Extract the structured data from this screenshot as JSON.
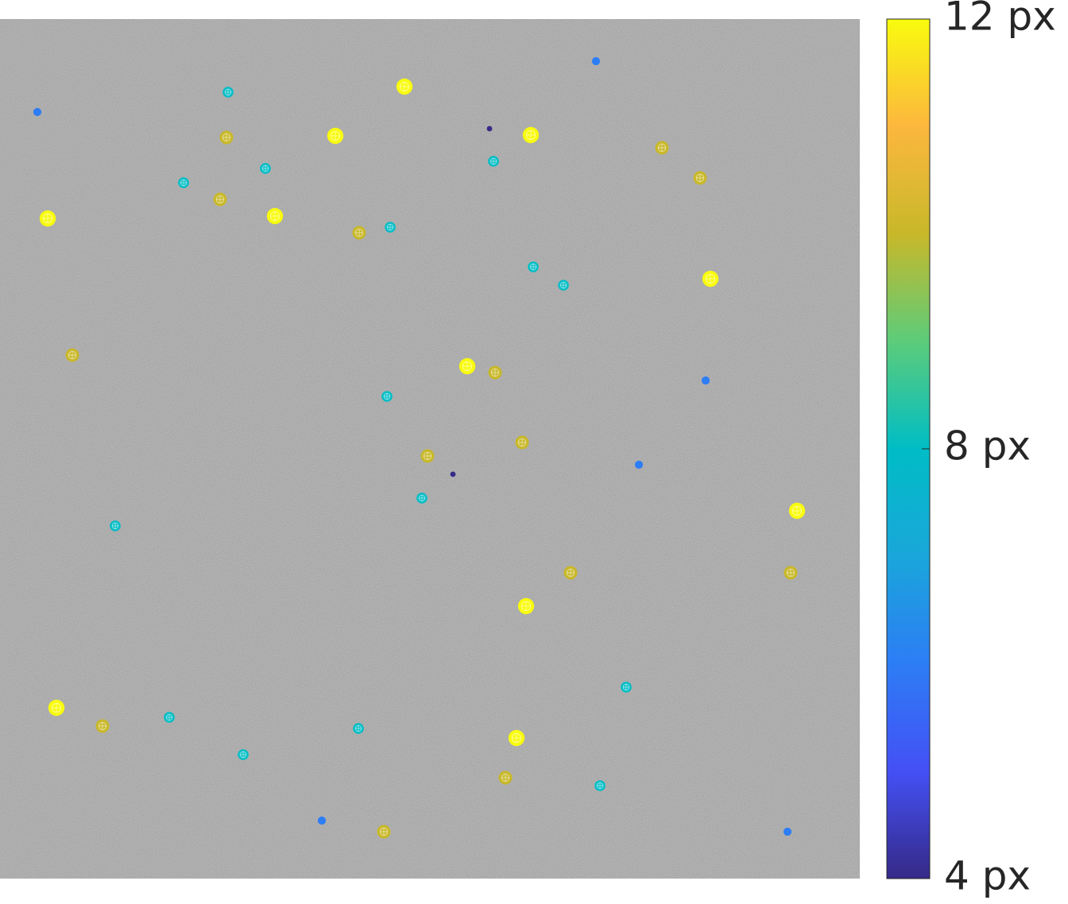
{
  "chart_data": {
    "type": "scatter",
    "x": [
      750,
      47,
      287,
      509,
      616,
      422,
      668,
      285,
      833,
      621,
      334,
      231,
      881,
      277,
      60,
      346,
      452,
      491,
      671,
      709,
      894,
      91,
      588,
      623,
      888,
      487,
      657,
      538,
      570,
      804,
      531,
      145,
      1003,
      718,
      995,
      662,
      788,
      71,
      129,
      213,
      451,
      650,
      306,
      636,
      755,
      405,
      483,
      991
    ],
    "y": [
      53,
      117,
      92,
      85,
      138,
      147,
      146,
      149,
      162,
      179,
      188,
      206,
      200,
      227,
      251,
      248,
      269,
      262,
      312,
      335,
      327,
      423,
      437,
      445,
      455,
      475,
      533,
      550,
      573,
      561,
      603,
      638,
      619,
      697,
      697,
      739,
      841,
      867,
      890,
      879,
      893,
      905,
      926,
      955,
      965,
      1009,
      1023,
      1023
    ],
    "values": [
      6,
      6,
      8,
      12,
      4,
      12,
      12,
      10,
      10,
      8,
      8,
      8,
      10,
      10,
      12,
      12,
      10,
      8,
      8,
      8,
      12,
      10,
      12,
      10,
      6,
      8,
      10,
      10,
      4,
      6,
      8,
      8,
      12,
      10,
      10,
      12,
      8,
      12,
      10,
      8,
      8,
      12,
      8,
      10,
      8,
      6,
      10,
      6
    ],
    "xlim": [
      0,
      1082
    ],
    "ylim": [
      1082,
      0
    ],
    "clim": [
      4,
      12
    ],
    "cticks": [
      {
        "value": 4,
        "label": "4 px"
      },
      {
        "value": 8,
        "label": "8 px"
      },
      {
        "value": 12,
        "label": "12 px"
      }
    ],
    "colormap": [
      "#352a87",
      "#4450f5",
      "#2d7df5",
      "#1aa6da",
      "#00bdc5",
      "#5ccc7a",
      "#c8b829",
      "#fcb73e",
      "#f9fb0e"
    ]
  }
}
